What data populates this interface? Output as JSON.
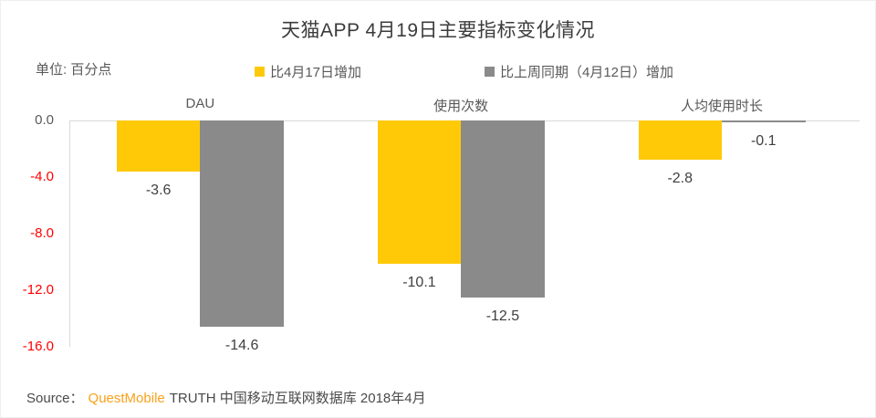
{
  "title": "天猫APP 4月19日主要指标变化情况",
  "unit_label": "单位: 百分点",
  "legend": [
    {
      "label": "比4月17日增加",
      "color": "#FFC908"
    },
    {
      "label": "比上周同期（4月12日）增加",
      "color": "#8A8A8A"
    }
  ],
  "source": {
    "prefix": "Source：",
    "brand": "QuestMobile",
    "brand_color": "#F9A11B",
    "suffix": "TRUTH 中国移动互联网数据库 2018年4月"
  },
  "chart_data": {
    "type": "bar",
    "title": "天猫APP 4月19日主要指标变化情况",
    "unit": "百分点",
    "categories": [
      "DAU",
      "使用次数",
      "人均使用时长"
    ],
    "series": [
      {
        "name": "比4月17日增加",
        "color": "#FFC908",
        "values": [
          -3.6,
          -10.1,
          -2.8
        ]
      },
      {
        "name": "比上周同期（4月12日）增加",
        "color": "#8A8A8A",
        "values": [
          -14.6,
          -12.5,
          -0.1
        ]
      }
    ],
    "yticks": [
      {
        "label": "0.0",
        "value": 0,
        "color": "#595959"
      },
      {
        "label": "-4.0",
        "value": -4,
        "color": "#FF0000"
      },
      {
        "label": "-8.0",
        "value": -8,
        "color": "#FF0000"
      },
      {
        "label": "-12.0",
        "value": -12,
        "color": "#FF0000"
      },
      {
        "label": "-16.0",
        "value": -16,
        "color": "#FF0000"
      }
    ],
    "ylim": [
      -16,
      0
    ],
    "grid": false,
    "legend_position": "top",
    "data_labels": true
  }
}
